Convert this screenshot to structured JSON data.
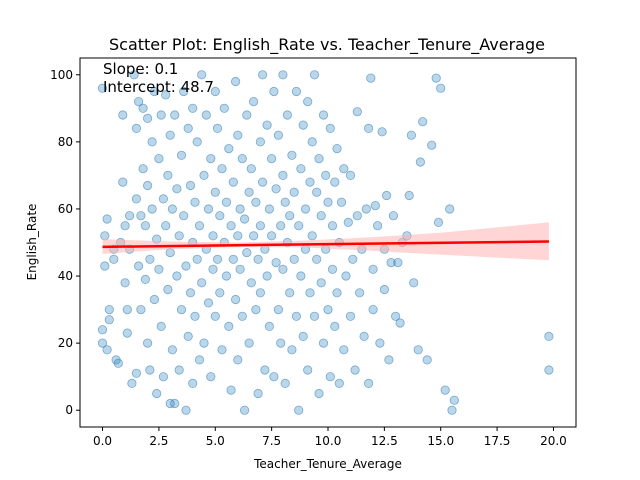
{
  "chart_data": {
    "type": "scatter",
    "title": "Scatter Plot: English_Rate vs. Teacher_Tenure_Average",
    "xlabel": "Teacher_Tenure_Average",
    "ylabel": "English_Rate",
    "xlim": [
      -1.0,
      21.0
    ],
    "ylim": [
      -5,
      105
    ],
    "xticks": [
      0.0,
      2.5,
      5.0,
      7.5,
      10.0,
      12.5,
      15.0,
      17.5,
      20.0
    ],
    "xtick_labels": [
      "0.0",
      "2.5",
      "5.0",
      "7.5",
      "10.0",
      "12.5",
      "15.0",
      "17.5",
      "20.0"
    ],
    "yticks": [
      0,
      20,
      40,
      60,
      80,
      100
    ],
    "ytick_labels": [
      "0",
      "20",
      "40",
      "60",
      "80",
      "100"
    ],
    "grid": false,
    "point_color": "#1f77b4",
    "point_alpha": 0.3,
    "annotations": [
      {
        "text": "Slope: 0.1"
      },
      {
        "text": "Intercept: 48.7"
      }
    ],
    "regression": {
      "color": "#ff0000",
      "band_color": "#ffb3b3",
      "slope": 0.1,
      "intercept": 48.7,
      "x_range": [
        0.0,
        19.8
      ],
      "band": [
        {
          "x": 0.0,
          "lower": 46.6,
          "upper": 51.0
        },
        {
          "x": 3.0,
          "lower": 48.0,
          "upper": 50.3
        },
        {
          "x": 6.0,
          "lower": 48.7,
          "upper": 50.0
        },
        {
          "x": 9.0,
          "lower": 48.5,
          "upper": 50.6
        },
        {
          "x": 12.0,
          "lower": 47.5,
          "upper": 51.6
        },
        {
          "x": 15.0,
          "lower": 46.4,
          "upper": 52.9
        },
        {
          "x": 19.8,
          "lower": 44.7,
          "upper": 56.0
        }
      ]
    },
    "points": [
      [
        0.0,
        96
      ],
      [
        0.0,
        20
      ],
      [
        0.0,
        24
      ],
      [
        0.1,
        43
      ],
      [
        0.1,
        52
      ],
      [
        0.2,
        57
      ],
      [
        0.2,
        18
      ],
      [
        0.3,
        30
      ],
      [
        0.3,
        27
      ],
      [
        0.5,
        48
      ],
      [
        0.5,
        45
      ],
      [
        0.6,
        15
      ],
      [
        0.7,
        14
      ],
      [
        0.8,
        50
      ],
      [
        0.9,
        88
      ],
      [
        0.9,
        68
      ],
      [
        1.0,
        38
      ],
      [
        1.0,
        55
      ],
      [
        1.1,
        30
      ],
      [
        1.1,
        23
      ],
      [
        1.2,
        58
      ],
      [
        1.2,
        48
      ],
      [
        1.3,
        8
      ],
      [
        1.4,
        100
      ],
      [
        1.5,
        84
      ],
      [
        1.5,
        63
      ],
      [
        1.5,
        11
      ],
      [
        1.6,
        92
      ],
      [
        1.6,
        43
      ],
      [
        1.7,
        58
      ],
      [
        1.7,
        30
      ],
      [
        1.8,
        90
      ],
      [
        1.8,
        72
      ],
      [
        1.9,
        55
      ],
      [
        1.9,
        39
      ],
      [
        2.0,
        87
      ],
      [
        2.0,
        67
      ],
      [
        2.0,
        20
      ],
      [
        2.1,
        12
      ],
      [
        2.1,
        45
      ],
      [
        2.2,
        80
      ],
      [
        2.2,
        60
      ],
      [
        2.3,
        95
      ],
      [
        2.3,
        33
      ],
      [
        2.4,
        5
      ],
      [
        2.4,
        51
      ],
      [
        2.5,
        75
      ],
      [
        2.5,
        42
      ],
      [
        2.6,
        88
      ],
      [
        2.6,
        25
      ],
      [
        2.7,
        63
      ],
      [
        2.7,
        10
      ],
      [
        2.8,
        94
      ],
      [
        2.8,
        55
      ],
      [
        2.9,
        36
      ],
      [
        2.9,
        70
      ],
      [
        3.0,
        2
      ],
      [
        3.0,
        47
      ],
      [
        3.0,
        82
      ],
      [
        3.1,
        18
      ],
      [
        3.1,
        60
      ],
      [
        3.2,
        2
      ],
      [
        3.2,
        88
      ],
      [
        3.3,
        40
      ],
      [
        3.3,
        66
      ],
      [
        3.4,
        12
      ],
      [
        3.4,
        52
      ],
      [
        3.5,
        76
      ],
      [
        3.5,
        30
      ],
      [
        3.6,
        95
      ],
      [
        3.6,
        58
      ],
      [
        3.7,
        0
      ],
      [
        3.7,
        43
      ],
      [
        3.8,
        84
      ],
      [
        3.8,
        22
      ],
      [
        3.9,
        67
      ],
      [
        3.9,
        35
      ],
      [
        4.0,
        8
      ],
      [
        4.0,
        50
      ],
      [
        4.0,
        90
      ],
      [
        4.1,
        28
      ],
      [
        4.1,
        62
      ],
      [
        4.2,
        45
      ],
      [
        4.2,
        80
      ],
      [
        4.3,
        15
      ],
      [
        4.3,
        55
      ],
      [
        4.4,
        100
      ],
      [
        4.4,
        38
      ],
      [
        4.5,
        70
      ],
      [
        4.5,
        20
      ],
      [
        4.6,
        48
      ],
      [
        4.6,
        88
      ],
      [
        4.7,
        32
      ],
      [
        4.7,
        60
      ],
      [
        4.8,
        75
      ],
      [
        4.8,
        10
      ],
      [
        4.9,
        52
      ],
      [
        4.9,
        42
      ],
      [
        5.0,
        95
      ],
      [
        5.0,
        65
      ],
      [
        5.0,
        28
      ],
      [
        5.1,
        84
      ],
      [
        5.1,
        45
      ],
      [
        5.2,
        58
      ],
      [
        5.2,
        35
      ],
      [
        5.3,
        72
      ],
      [
        5.3,
        18
      ],
      [
        5.4,
        50
      ],
      [
        5.4,
        90
      ],
      [
        5.5,
        40
      ],
      [
        5.5,
        62
      ],
      [
        5.6,
        25
      ],
      [
        5.6,
        78
      ],
      [
        5.7,
        55
      ],
      [
        5.7,
        6
      ],
      [
        5.8,
        45
      ],
      [
        5.8,
        68
      ],
      [
        5.9,
        98
      ],
      [
        5.9,
        33
      ],
      [
        6.0,
        52
      ],
      [
        6.0,
        82
      ],
      [
        6.0,
        15
      ],
      [
        6.1,
        60
      ],
      [
        6.1,
        42
      ],
      [
        6.2,
        75
      ],
      [
        6.2,
        28
      ],
      [
        6.3,
        0
      ],
      [
        6.3,
        57
      ],
      [
        6.4,
        88
      ],
      [
        6.4,
        47
      ],
      [
        6.5,
        65
      ],
      [
        6.5,
        20
      ],
      [
        6.6,
        38
      ],
      [
        6.6,
        72
      ],
      [
        6.7,
        92
      ],
      [
        6.7,
        52
      ],
      [
        6.8,
        30
      ],
      [
        6.8,
        62
      ],
      [
        6.9,
        5
      ],
      [
        6.9,
        45
      ],
      [
        7.0,
        80
      ],
      [
        7.0,
        55
      ],
      [
        7.0,
        35
      ],
      [
        7.1,
        100
      ],
      [
        7.1,
        68
      ],
      [
        7.2,
        12
      ],
      [
        7.2,
        48
      ],
      [
        7.3,
        85
      ],
      [
        7.3,
        40
      ],
      [
        7.4,
        60
      ],
      [
        7.4,
        25
      ],
      [
        7.5,
        75
      ],
      [
        7.5,
        52
      ],
      [
        7.6,
        95
      ],
      [
        7.6,
        10
      ],
      [
        7.7,
        44
      ],
      [
        7.7,
        66
      ],
      [
        7.8,
        30
      ],
      [
        7.8,
        82
      ],
      [
        7.9,
        55
      ],
      [
        7.9,
        20
      ],
      [
        8.0,
        70
      ],
      [
        8.0,
        42
      ],
      [
        8.0,
        100
      ],
      [
        8.1,
        62
      ],
      [
        8.1,
        8
      ],
      [
        8.2,
        50
      ],
      [
        8.2,
        88
      ],
      [
        8.3,
        35
      ],
      [
        8.3,
        58
      ],
      [
        8.4,
        76
      ],
      [
        8.4,
        18
      ],
      [
        8.5,
        45
      ],
      [
        8.5,
        65
      ],
      [
        8.6,
        95
      ],
      [
        8.6,
        28
      ],
      [
        8.7,
        55
      ],
      [
        8.7,
        0
      ],
      [
        8.8,
        72
      ],
      [
        8.8,
        40
      ],
      [
        8.9,
        85
      ],
      [
        8.9,
        22
      ],
      [
        9.0,
        60
      ],
      [
        9.0,
        48
      ],
      [
        9.1,
        92
      ],
      [
        9.1,
        12
      ],
      [
        9.2,
        68
      ],
      [
        9.2,
        35
      ],
      [
        9.3,
        52
      ],
      [
        9.3,
        80
      ],
      [
        9.4,
        100
      ],
      [
        9.4,
        28
      ],
      [
        9.5,
        45
      ],
      [
        9.5,
        65
      ],
      [
        9.6,
        5
      ],
      [
        9.6,
        75
      ],
      [
        9.7,
        38
      ],
      [
        9.7,
        58
      ],
      [
        9.8,
        88
      ],
      [
        9.8,
        20
      ],
      [
        9.9,
        48
      ],
      [
        9.9,
        70
      ],
      [
        10.0,
        30
      ],
      [
        10.0,
        62
      ],
      [
        10.1,
        10
      ],
      [
        10.1,
        84
      ],
      [
        10.2,
        42
      ],
      [
        10.2,
        55
      ],
      [
        10.3,
        25
      ],
      [
        10.3,
        68
      ],
      [
        10.4,
        78
      ],
      [
        10.4,
        35
      ],
      [
        10.5,
        8
      ],
      [
        10.5,
        50
      ],
      [
        10.6,
        62
      ],
      [
        10.7,
        18
      ],
      [
        10.7,
        72
      ],
      [
        10.8,
        40
      ],
      [
        10.9,
        56
      ],
      [
        11.0,
        28
      ],
      [
        11.0,
        70
      ],
      [
        11.1,
        45
      ],
      [
        11.2,
        12
      ],
      [
        11.3,
        89
      ],
      [
        11.3,
        58
      ],
      [
        11.4,
        35
      ],
      [
        11.5,
        48
      ],
      [
        11.6,
        22
      ],
      [
        11.7,
        60
      ],
      [
        11.8,
        84
      ],
      [
        11.8,
        8
      ],
      [
        11.9,
        99
      ],
      [
        12.0,
        42
      ],
      [
        12.0,
        30
      ],
      [
        12.1,
        61
      ],
      [
        12.2,
        55
      ],
      [
        12.3,
        20
      ],
      [
        12.4,
        83
      ],
      [
        12.5,
        48
      ],
      [
        12.5,
        36
      ],
      [
        12.6,
        64
      ],
      [
        12.7,
        15
      ],
      [
        12.8,
        44
      ],
      [
        12.9,
        58
      ],
      [
        13.0,
        28
      ],
      [
        13.1,
        44
      ],
      [
        13.2,
        26
      ],
      [
        13.3,
        50
      ],
      [
        13.5,
        52
      ],
      [
        13.6,
        64
      ],
      [
        13.7,
        82
      ],
      [
        13.8,
        38
      ],
      [
        14.0,
        18
      ],
      [
        14.1,
        74
      ],
      [
        14.2,
        86
      ],
      [
        14.4,
        15
      ],
      [
        14.6,
        79
      ],
      [
        14.8,
        99
      ],
      [
        14.9,
        56
      ],
      [
        15.0,
        96
      ],
      [
        15.2,
        6
      ],
      [
        15.4,
        60
      ],
      [
        15.5,
        0
      ],
      [
        15.6,
        3
      ],
      [
        19.8,
        22
      ],
      [
        19.8,
        12
      ]
    ]
  }
}
